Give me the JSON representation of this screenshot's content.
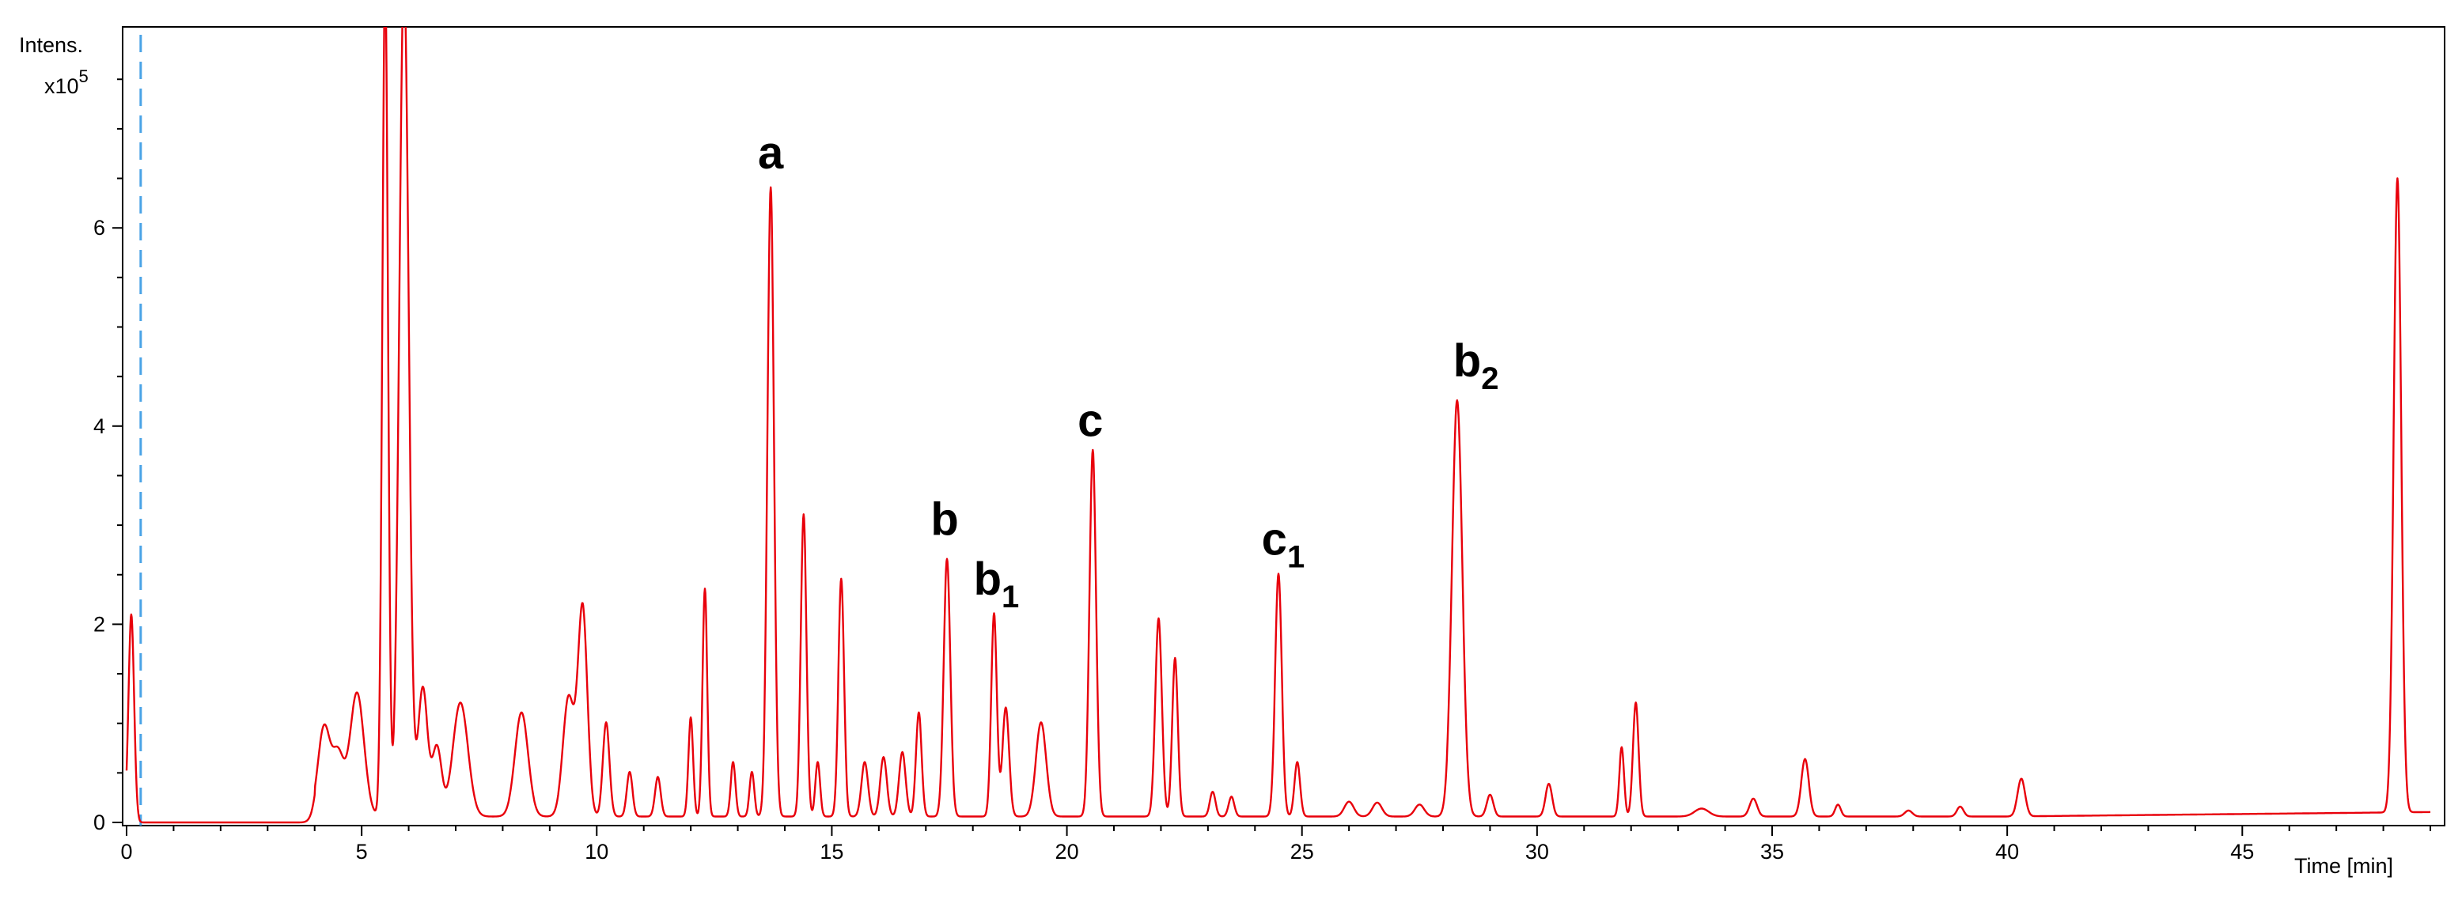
{
  "colors": {
    "trace": "#e8000b",
    "marker": "#4aa3e6",
    "axis": "#000000"
  },
  "chart_data": {
    "type": "line",
    "title": "",
    "ylabel": "Intens.",
    "ylabel_multiplier": "x10",
    "ylabel_exponent": "5",
    "xlabel": "Time [min]",
    "xlim": [
      0,
      49
    ],
    "ylim": [
      0,
      8
    ],
    "x_ticks": [
      0,
      5,
      10,
      15,
      20,
      25,
      30,
      35,
      40,
      45
    ],
    "x_tick_labels": [
      "0",
      "5",
      "10",
      "15",
      "20",
      "25",
      "30",
      "35",
      "40",
      "45"
    ],
    "y_ticks": [
      0,
      2,
      4,
      6
    ],
    "y_tick_labels": [
      "0",
      "2",
      "4",
      "6"
    ],
    "grid": false,
    "reference_line_x": 0.3,
    "baseline": 0.05,
    "series": [
      {
        "peaks": [
          [
            0.1,
            2.1,
            0.06
          ],
          [
            4.2,
            0.9,
            0.13
          ],
          [
            4.5,
            0.6,
            0.12
          ],
          [
            4.9,
            1.25,
            0.15
          ],
          [
            5.5,
            8.5,
            0.06
          ],
          [
            5.9,
            8.5,
            0.1
          ],
          [
            6.3,
            1.3,
            0.1
          ],
          [
            6.6,
            0.7,
            0.1
          ],
          [
            7.1,
            1.15,
            0.16
          ],
          [
            8.4,
            1.05,
            0.14
          ],
          [
            9.4,
            1.2,
            0.12
          ],
          [
            9.7,
            2.1,
            0.1
          ],
          [
            10.2,
            0.95,
            0.07
          ],
          [
            10.7,
            0.45,
            0.06
          ],
          [
            11.3,
            0.4,
            0.06
          ],
          [
            12.0,
            1.0,
            0.05
          ],
          [
            12.3,
            2.3,
            0.05
          ],
          [
            12.9,
            0.55,
            0.05
          ],
          [
            13.3,
            0.45,
            0.05
          ],
          [
            13.7,
            6.35,
            0.07
          ],
          [
            14.4,
            3.05,
            0.06
          ],
          [
            14.7,
            0.55,
            0.05
          ],
          [
            15.2,
            2.4,
            0.06
          ],
          [
            15.7,
            0.55,
            0.07
          ],
          [
            16.1,
            0.6,
            0.07
          ],
          [
            16.5,
            0.65,
            0.07
          ],
          [
            16.85,
            1.05,
            0.06
          ],
          [
            17.45,
            2.6,
            0.07
          ],
          [
            18.45,
            2.05,
            0.06
          ],
          [
            18.7,
            1.1,
            0.07
          ],
          [
            19.45,
            0.95,
            0.11
          ],
          [
            20.55,
            3.7,
            0.07
          ],
          [
            21.95,
            2.0,
            0.07
          ],
          [
            22.3,
            1.6,
            0.06
          ],
          [
            23.1,
            0.25,
            0.06
          ],
          [
            23.5,
            0.2,
            0.06
          ],
          [
            24.5,
            2.45,
            0.07
          ],
          [
            24.9,
            0.55,
            0.06
          ],
          [
            26.0,
            0.15,
            0.1
          ],
          [
            26.6,
            0.14,
            0.1
          ],
          [
            27.5,
            0.12,
            0.1
          ],
          [
            28.3,
            4.2,
            0.11
          ],
          [
            29.0,
            0.22,
            0.07
          ],
          [
            30.25,
            0.33,
            0.07
          ],
          [
            31.8,
            0.7,
            0.05
          ],
          [
            32.1,
            1.15,
            0.06
          ],
          [
            33.5,
            0.08,
            0.15
          ],
          [
            34.6,
            0.18,
            0.08
          ],
          [
            35.7,
            0.58,
            0.08
          ],
          [
            36.4,
            0.12,
            0.06
          ],
          [
            37.9,
            0.06,
            0.08
          ],
          [
            39.0,
            0.1,
            0.07
          ],
          [
            40.3,
            0.38,
            0.08
          ],
          [
            48.3,
            6.4,
            0.08
          ]
        ]
      }
    ],
    "annotations": [
      {
        "base": "a",
        "sub": "",
        "x": 13.7,
        "y": 6.6
      },
      {
        "base": "b",
        "sub": "",
        "x": 17.4,
        "y": 2.9
      },
      {
        "base": "b",
        "sub": "1",
        "x": 18.5,
        "y": 2.3
      },
      {
        "base": "c",
        "sub": "",
        "x": 20.5,
        "y": 3.9
      },
      {
        "base": "c",
        "sub": "1",
        "x": 24.6,
        "y": 2.7
      },
      {
        "base": "b",
        "sub": "2",
        "x": 28.7,
        "y": 4.5
      }
    ]
  }
}
